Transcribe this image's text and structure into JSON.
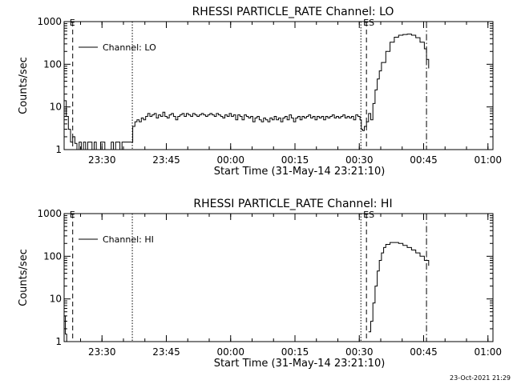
{
  "chart_data": [
    {
      "type": "line",
      "title": "RHESSI PARTICLE_RATE Channel: LO",
      "xlabel": "Start Time (31-May-14 23:21:10)",
      "ylabel": "Counts/sec",
      "yscale": "log",
      "ylim": [
        1,
        1000
      ],
      "xlim_minutes_from_2321": [
        0,
        100
      ],
      "x_ticks": [
        {
          "label": "23:30",
          "t": 8.83
        },
        {
          "label": "23:45",
          "t": 23.83
        },
        {
          "label": "00:00",
          "t": 38.83
        },
        {
          "label": "00:15",
          "t": 53.83
        },
        {
          "label": "00:30",
          "t": 68.83
        },
        {
          "label": "00:45",
          "t": 83.83
        },
        {
          "label": "01:00",
          "t": 98.83
        }
      ],
      "y_ticks": [
        {
          "label": "1",
          "v": 1
        },
        {
          "label": "10",
          "v": 10
        },
        {
          "label": "100",
          "v": 100
        },
        {
          "label": "1000",
          "v": 1000
        }
      ],
      "legend": {
        "entry": "Channel: LO",
        "placement": "top-left"
      },
      "marker_lines": [
        {
          "t": 2.0,
          "style": "dashed",
          "label": "E"
        },
        {
          "t": 15.9,
          "style": "dotted",
          "label": ""
        },
        {
          "t": 69.2,
          "style": "dotted",
          "label": ""
        },
        {
          "t": 70.5,
          "style": "dashed",
          "label": "ES"
        },
        {
          "t": 84.5,
          "style": "dashdot",
          "label": ""
        }
      ],
      "series": [
        {
          "values": [
            [
              0.0,
              14
            ],
            [
              0.5,
              6
            ],
            [
              1.0,
              3
            ],
            [
              1.5,
              1.5
            ],
            [
              2.0,
              2
            ],
            [
              2.5,
              1.4
            ],
            [
              3.0,
              1
            ],
            [
              3.5,
              1.5
            ],
            [
              4.0,
              1
            ],
            [
              4.5,
              1.5
            ],
            [
              5.0,
              1
            ],
            [
              5.5,
              1.5
            ],
            [
              6.0,
              1.5
            ],
            [
              6.5,
              1
            ],
            [
              7.0,
              1.5
            ],
            [
              7.5,
              1
            ],
            [
              8.0,
              1
            ],
            [
              8.5,
              1.5
            ],
            [
              9.0,
              1.5
            ],
            [
              9.5,
              1
            ],
            [
              10.0,
              1
            ],
            [
              10.5,
              1
            ],
            [
              11.0,
              1.5
            ],
            [
              11.5,
              1
            ],
            [
              12.0,
              1.5
            ],
            [
              12.5,
              1.5
            ],
            [
              13.0,
              1
            ],
            [
              13.5,
              1.5
            ],
            [
              14.0,
              1.5
            ],
            [
              14.5,
              1.5
            ],
            [
              15.0,
              1.5
            ],
            [
              15.5,
              1.5
            ],
            [
              16.0,
              3.5
            ],
            [
              16.5,
              4.5
            ],
            [
              17.0,
              5
            ],
            [
              17.5,
              4.5
            ],
            [
              18.0,
              5.5
            ],
            [
              18.5,
              5
            ],
            [
              19.0,
              6
            ],
            [
              19.5,
              7
            ],
            [
              20.0,
              6
            ],
            [
              20.5,
              6.5
            ],
            [
              21.0,
              7
            ],
            [
              21.5,
              5.5
            ],
            [
              22.0,
              6.5
            ],
            [
              22.5,
              6
            ],
            [
              23.0,
              7.5
            ],
            [
              23.5,
              6
            ],
            [
              24.0,
              5.5
            ],
            [
              24.5,
              6.5
            ],
            [
              25.0,
              7
            ],
            [
              25.5,
              6
            ],
            [
              26.0,
              5
            ],
            [
              26.5,
              6
            ],
            [
              27.0,
              6.5
            ],
            [
              27.5,
              7
            ],
            [
              28.0,
              6
            ],
            [
              28.5,
              7
            ],
            [
              29.0,
              6.5
            ],
            [
              29.5,
              6
            ],
            [
              30.0,
              7
            ],
            [
              30.5,
              6.5
            ],
            [
              31.0,
              6
            ],
            [
              31.5,
              6.5
            ],
            [
              32.0,
              7
            ],
            [
              32.5,
              6.5
            ],
            [
              33.0,
              6
            ],
            [
              33.5,
              6.5
            ],
            [
              34.0,
              7
            ],
            [
              34.5,
              6.5
            ],
            [
              35.0,
              6
            ],
            [
              35.5,
              7
            ],
            [
              36.0,
              6.5
            ],
            [
              36.5,
              6
            ],
            [
              37.0,
              5.5
            ],
            [
              37.5,
              6.5
            ],
            [
              38.0,
              6
            ],
            [
              38.5,
              7
            ],
            [
              39.0,
              6
            ],
            [
              39.5,
              6.5
            ],
            [
              40.0,
              5
            ],
            [
              40.5,
              6.5
            ],
            [
              41.0,
              6
            ],
            [
              41.5,
              5
            ],
            [
              42.0,
              6.5
            ],
            [
              42.5,
              6
            ],
            [
              43.0,
              5.5
            ],
            [
              43.5,
              6
            ],
            [
              44.0,
              4.5
            ],
            [
              44.5,
              5.5
            ],
            [
              45.0,
              6
            ],
            [
              45.5,
              5
            ],
            [
              46.0,
              4.5
            ],
            [
              46.5,
              5.5
            ],
            [
              47.0,
              5
            ],
            [
              47.5,
              4.5
            ],
            [
              48.0,
              5.5
            ],
            [
              48.5,
              5
            ],
            [
              49.0,
              6
            ],
            [
              49.5,
              5
            ],
            [
              50.0,
              5.5
            ],
            [
              50.5,
              4.5
            ],
            [
              51.0,
              5.5
            ],
            [
              51.5,
              6
            ],
            [
              52.0,
              5
            ],
            [
              52.5,
              6.5
            ],
            [
              53.0,
              5.5
            ],
            [
              53.5,
              4.5
            ],
            [
              54.0,
              5.5
            ],
            [
              54.5,
              6
            ],
            [
              55.0,
              5
            ],
            [
              55.5,
              6
            ],
            [
              56.0,
              5.5
            ],
            [
              56.5,
              6
            ],
            [
              57.0,
              6.5
            ],
            [
              57.5,
              5.5
            ],
            [
              58.0,
              6
            ],
            [
              58.5,
              5
            ],
            [
              59.0,
              6
            ],
            [
              59.5,
              5.5
            ],
            [
              60.0,
              6
            ],
            [
              60.5,
              5
            ],
            [
              61.0,
              6
            ],
            [
              61.5,
              5.5
            ],
            [
              62.0,
              6
            ],
            [
              62.5,
              6.5
            ],
            [
              63.0,
              5.5
            ],
            [
              63.5,
              6
            ],
            [
              64.0,
              5.5
            ],
            [
              64.5,
              6
            ],
            [
              65.0,
              6.5
            ],
            [
              65.5,
              5.5
            ],
            [
              66.0,
              6
            ],
            [
              66.5,
              5.5
            ],
            [
              67.0,
              6
            ],
            [
              67.5,
              5
            ],
            [
              68.0,
              6.5
            ],
            [
              68.5,
              6
            ],
            [
              69.0,
              5
            ],
            [
              69.3,
              3
            ],
            [
              69.6,
              2.8
            ],
            [
              70.0,
              3.5
            ],
            [
              70.5,
              4.5
            ],
            [
              71.0,
              7
            ],
            [
              71.5,
              5
            ],
            [
              72.0,
              12
            ],
            [
              72.5,
              25
            ],
            [
              73.0,
              45
            ],
            [
              73.5,
              70
            ],
            [
              74.0,
              110
            ],
            [
              75.0,
              200
            ],
            [
              76.0,
              330
            ],
            [
              77.0,
              430
            ],
            [
              78.0,
              480
            ],
            [
              79.0,
              500
            ],
            [
              80.0,
              510
            ],
            [
              81.0,
              480
            ],
            [
              82.0,
              420
            ],
            [
              83.0,
              330
            ],
            [
              84.0,
              230
            ],
            [
              84.5,
              130
            ],
            [
              85.0,
              80
            ]
          ]
        }
      ]
    },
    {
      "type": "line",
      "title": "RHESSI PARTICLE_RATE Channel: HI",
      "xlabel": "Start Time (31-May-14 23:21:10)",
      "ylabel": "Counts/sec",
      "yscale": "log",
      "ylim": [
        1,
        1000
      ],
      "xlim_minutes_from_2321": [
        0,
        100
      ],
      "x_ticks": [
        {
          "label": "23:30",
          "t": 8.83
        },
        {
          "label": "23:45",
          "t": 23.83
        },
        {
          "label": "00:00",
          "t": 38.83
        },
        {
          "label": "00:15",
          "t": 53.83
        },
        {
          "label": "00:30",
          "t": 68.83
        },
        {
          "label": "00:45",
          "t": 83.83
        },
        {
          "label": "01:00",
          "t": 98.83
        }
      ],
      "y_ticks": [
        {
          "label": "1",
          "v": 1
        },
        {
          "label": "10",
          "v": 10
        },
        {
          "label": "100",
          "v": 100
        },
        {
          "label": "1000",
          "v": 1000
        }
      ],
      "legend": {
        "entry": "Channel: HI",
        "placement": "top-left"
      },
      "marker_lines": [
        {
          "t": 2.0,
          "style": "dashed",
          "label": "E"
        },
        {
          "t": 15.9,
          "style": "dotted",
          "label": ""
        },
        {
          "t": 69.2,
          "style": "dotted",
          "label": ""
        },
        {
          "t": 70.5,
          "style": "dashed",
          "label": "ES"
        },
        {
          "t": 84.5,
          "style": "dashdot",
          "label": ""
        }
      ],
      "series": [
        {
          "values": [
            [
              0.0,
              4
            ],
            [
              0.3,
              1.5
            ],
            [
              0.6,
              1
            ]
          ]
        },
        {
          "values": [
            [
              71.0,
              1.7
            ],
            [
              71.5,
              3
            ],
            [
              72.0,
              8
            ],
            [
              72.5,
              20
            ],
            [
              73.0,
              45
            ],
            [
              73.5,
              80
            ],
            [
              74.0,
              120
            ],
            [
              74.5,
              160
            ],
            [
              75.0,
              190
            ],
            [
              76.0,
              210
            ],
            [
              77.0,
              210
            ],
            [
              78.0,
              200
            ],
            [
              79.0,
              180
            ],
            [
              80.0,
              160
            ],
            [
              81.0,
              140
            ],
            [
              82.0,
              120
            ],
            [
              83.0,
              100
            ],
            [
              84.0,
              80
            ],
            [
              85.0,
              60
            ]
          ]
        }
      ]
    }
  ],
  "footer_timestamp": "23-Oct-2021 21:29"
}
